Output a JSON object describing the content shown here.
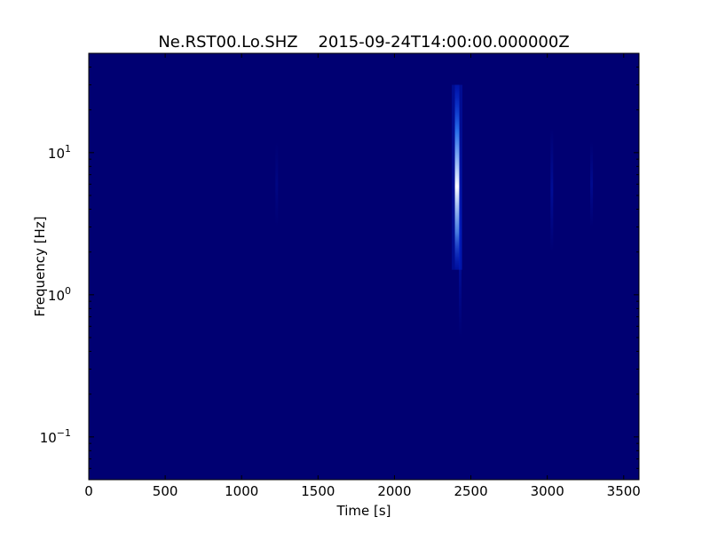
{
  "chart_data": {
    "type": "heatmap",
    "title": "Ne.RST00.Lo.SHZ    2015-09-24T14:00:00.000000Z",
    "xlabel": "Time [s]",
    "ylabel": "Frequency [Hz]",
    "x_scale": "linear",
    "y_scale": "log",
    "xlim": [
      0,
      3600
    ],
    "ylim": [
      0.05,
      50
    ],
    "x_ticks": [
      0,
      500,
      1000,
      1500,
      2000,
      2500,
      3000,
      3500
    ],
    "y_ticks": [
      {
        "value": 0.1,
        "base": "10",
        "exp": "−1"
      },
      {
        "value": 1,
        "base": "10",
        "exp": "0"
      },
      {
        "value": 10,
        "base": "10",
        "exp": "1"
      }
    ],
    "grid": false,
    "colormap": [
      "#00007a",
      "#0000b4",
      "#0033ff",
      "#66aaff",
      "#ffffff"
    ],
    "background_color": "#000072",
    "features": [
      {
        "label": "event",
        "time": 2410,
        "freq_min": 1.5,
        "freq_max": 30,
        "intensity": 1.0
      },
      {
        "label": "weak-line",
        "time": 2430,
        "freq_min": 0.5,
        "freq_max": 15,
        "intensity": 0.35
      },
      {
        "label": "weak-line",
        "time": 3030,
        "freq_min": 2,
        "freq_max": 15,
        "intensity": 0.25
      },
      {
        "label": "weak-line",
        "time": 3290,
        "freq_min": 3,
        "freq_max": 12,
        "intensity": 0.2
      },
      {
        "label": "weak-line",
        "time": 1230,
        "freq_min": 3,
        "freq_max": 12,
        "intensity": 0.12
      }
    ]
  }
}
